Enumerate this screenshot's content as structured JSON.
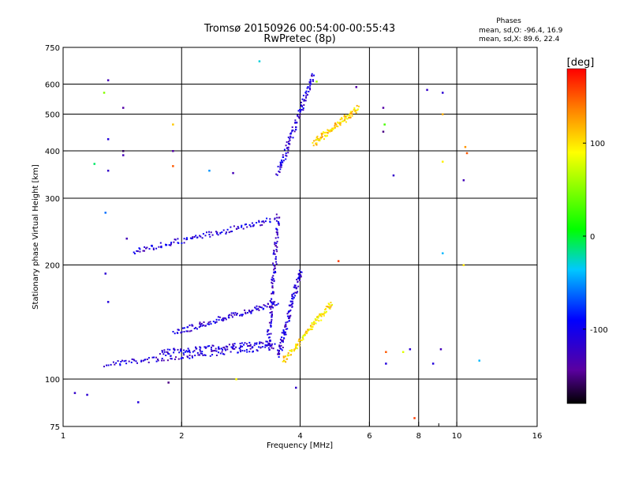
{
  "chart_data": {
    "type": "scatter",
    "title": "Tromsø 20150926 00:54:00-00:55:43",
    "subtitle": "RwPretec (8p)",
    "xlabel": "Frequency [MHz]",
    "ylabel": "Stationary phase Virtual Height [km]",
    "x_scale": "log",
    "y_scale": "log",
    "xlim": [
      1,
      16
    ],
    "ylim": [
      75,
      750
    ],
    "x_ticks": [
      1,
      2,
      4,
      6,
      8,
      10,
      16
    ],
    "x_tick_labels": [
      "1",
      "2",
      "4",
      "6",
      "8",
      "10",
      "16"
    ],
    "x_grid": [
      2,
      4,
      6,
      8,
      10
    ],
    "x_minor": [
      9
    ],
    "y_ticks": [
      75,
      100,
      200,
      300,
      400,
      500,
      600,
      750
    ],
    "y_tick_labels": [
      "75",
      "100",
      "200",
      "300",
      "400",
      "500",
      "600",
      "750"
    ],
    "y_grid": [
      100,
      200,
      300,
      400,
      500,
      600
    ],
    "grid": true,
    "phases": {
      "heading": "Phases",
      "line_o": "mean, sd,O: -96.4, 16.9",
      "line_x": "mean, sd,X:  89.6, 22.4"
    },
    "colorbar": {
      "label": "[deg]",
      "min": -180,
      "max": 180,
      "ticks": [
        -100,
        0,
        100
      ],
      "tick_labels": [
        "-100",
        "0",
        "100"
      ]
    },
    "traces": [
      {
        "x_start": 1.28,
        "x_end": 3.4,
        "y_start": 110,
        "y_end": 122,
        "phase": -115
      },
      {
        "x_start": 1.9,
        "x_end": 3.5,
        "y_start": 133,
        "y_end": 160,
        "phase": -112
      },
      {
        "x_start": 1.75,
        "x_end": 3.4,
        "y_start": 118,
        "y_end": 125,
        "phase": -108
      },
      {
        "x_start": 1.5,
        "x_end": 3.45,
        "y_start": 218,
        "y_end": 265,
        "phase": -110
      },
      {
        "x_start": 3.5,
        "x_end": 4.3,
        "y_start": 350,
        "y_end": 640,
        "phase": -112
      },
      {
        "x_start": 3.3,
        "x_end": 3.5,
        "y_start": 120,
        "y_end": 270,
        "phase": -118
      },
      {
        "x_start": 3.5,
        "x_end": 4.0,
        "y_start": 115,
        "y_end": 195,
        "phase": -113
      },
      {
        "x_start": 3.6,
        "x_end": 4.8,
        "y_start": 112,
        "y_end": 160,
        "phase": 100
      },
      {
        "x_start": 4.3,
        "x_end": 5.6,
        "y_start": 420,
        "y_end": 520,
        "phase": 105
      }
    ],
    "scattered_points": [
      {
        "x": 1.07,
        "y": 92,
        "phase": -120
      },
      {
        "x": 1.15,
        "y": 91,
        "phase": -115
      },
      {
        "x": 1.2,
        "y": 370,
        "phase": -10
      },
      {
        "x": 1.27,
        "y": 570,
        "phase": 50
      },
      {
        "x": 1.3,
        "y": 615,
        "phase": -130
      },
      {
        "x": 1.3,
        "y": 430,
        "phase": -110
      },
      {
        "x": 1.3,
        "y": 355,
        "phase": -120
      },
      {
        "x": 1.28,
        "y": 275,
        "phase": -60
      },
      {
        "x": 1.28,
        "y": 190,
        "phase": -115
      },
      {
        "x": 1.3,
        "y": 160,
        "phase": -110
      },
      {
        "x": 1.42,
        "y": 520,
        "phase": -140
      },
      {
        "x": 1.42,
        "y": 400,
        "phase": -160
      },
      {
        "x": 1.42,
        "y": 390,
        "phase": -130
      },
      {
        "x": 1.45,
        "y": 235,
        "phase": -130
      },
      {
        "x": 1.55,
        "y": 87,
        "phase": -110
      },
      {
        "x": 1.9,
        "y": 470,
        "phase": 110
      },
      {
        "x": 1.9,
        "y": 400,
        "phase": -140
      },
      {
        "x": 1.9,
        "y": 365,
        "phase": 150
      },
      {
        "x": 1.85,
        "y": 98,
        "phase": -150
      },
      {
        "x": 2.35,
        "y": 355,
        "phase": -50
      },
      {
        "x": 2.7,
        "y": 350,
        "phase": -130
      },
      {
        "x": 2.75,
        "y": 100,
        "phase": 90
      },
      {
        "x": 3.15,
        "y": 690,
        "phase": -30
      },
      {
        "x": 3.9,
        "y": 95,
        "phase": -120
      },
      {
        "x": 4.4,
        "y": 610,
        "phase": 60
      },
      {
        "x": 5.0,
        "y": 205,
        "phase": 160
      },
      {
        "x": 5.55,
        "y": 590,
        "phase": -140
      },
      {
        "x": 6.5,
        "y": 520,
        "phase": -140
      },
      {
        "x": 6.5,
        "y": 450,
        "phase": -150
      },
      {
        "x": 6.55,
        "y": 470,
        "phase": 30
      },
      {
        "x": 6.6,
        "y": 118,
        "phase": 150
      },
      {
        "x": 6.6,
        "y": 110,
        "phase": -110
      },
      {
        "x": 6.9,
        "y": 345,
        "phase": -120
      },
      {
        "x": 7.3,
        "y": 118,
        "phase": 80
      },
      {
        "x": 7.6,
        "y": 120,
        "phase": -115
      },
      {
        "x": 7.8,
        "y": 79,
        "phase": 160
      },
      {
        "x": 8.4,
        "y": 580,
        "phase": -120
      },
      {
        "x": 8.7,
        "y": 110,
        "phase": -110
      },
      {
        "x": 9.1,
        "y": 120,
        "phase": -130
      },
      {
        "x": 9.2,
        "y": 570,
        "phase": -115
      },
      {
        "x": 9.2,
        "y": 500,
        "phase": 120
      },
      {
        "x": 9.2,
        "y": 375,
        "phase": 95
      },
      {
        "x": 9.2,
        "y": 215,
        "phase": -40
      },
      {
        "x": 10.4,
        "y": 335,
        "phase": -130
      },
      {
        "x": 10.4,
        "y": 200,
        "phase": 100
      },
      {
        "x": 10.5,
        "y": 410,
        "phase": 130
      },
      {
        "x": 10.6,
        "y": 395,
        "phase": 150
      },
      {
        "x": 11.4,
        "y": 112,
        "phase": -40
      }
    ]
  }
}
